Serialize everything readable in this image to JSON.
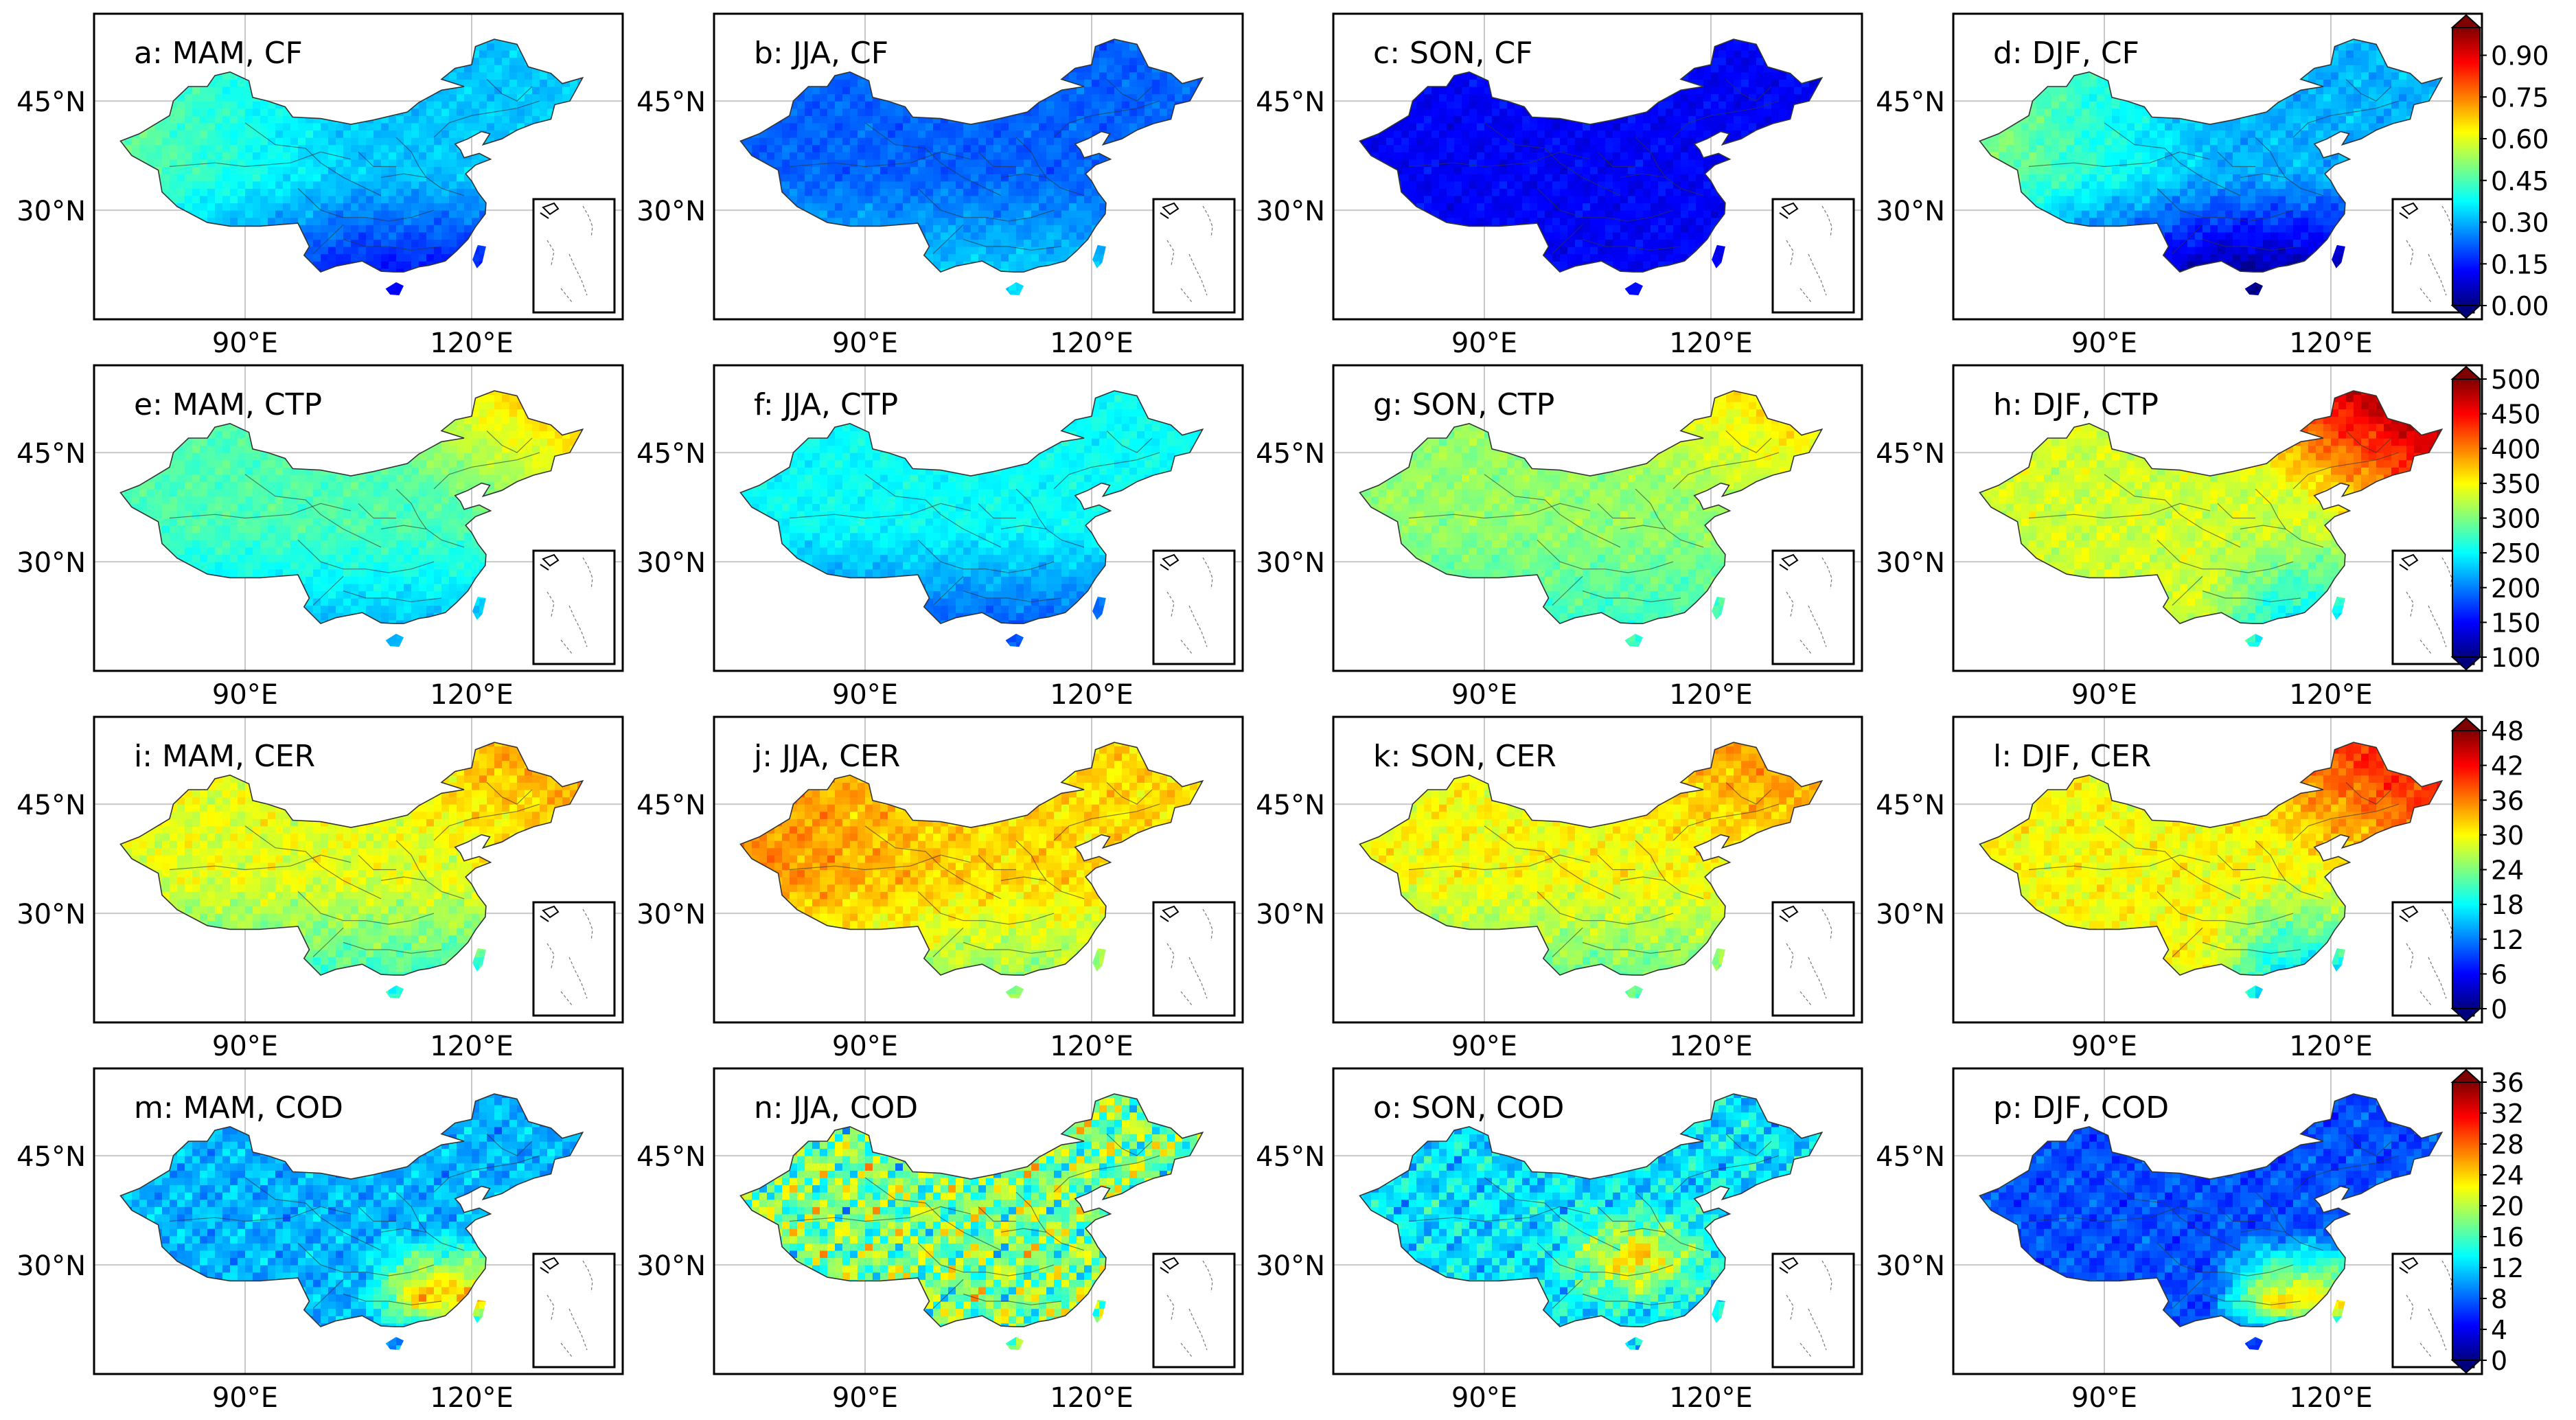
{
  "figure": {
    "description_rows": 4,
    "description_cols": 4
  },
  "chart_data": {
    "type": "map-grid",
    "axes": {
      "lat_ticks": [
        "45°N",
        "30°N"
      ],
      "lon_ticks": [
        "90°E",
        "120°E"
      ]
    },
    "seasons": [
      "MAM",
      "JJA",
      "SON",
      "DJF"
    ],
    "rows": [
      {
        "variable": "CF",
        "panels": [
          {
            "label": "a: MAM, CF",
            "pattern": "cf_mam"
          },
          {
            "label": "b: JJA, CF",
            "pattern": "cf_jja"
          },
          {
            "label": "c: SON, CF",
            "pattern": "cf_son"
          },
          {
            "label": "d: DJF, CF",
            "pattern": "cf_djf"
          }
        ],
        "colorbar": {
          "min": 0.0,
          "max": 1.0,
          "ticks": [
            "0.00",
            "0.15",
            "0.30",
            "0.45",
            "0.60",
            "0.75",
            "0.90"
          ],
          "tick_values": [
            0,
            0.15,
            0.3,
            0.45,
            0.6,
            0.75,
            0.9
          ]
        }
      },
      {
        "variable": "CTP",
        "panels": [
          {
            "label": "e: MAM, CTP",
            "pattern": "ctp_mam"
          },
          {
            "label": "f: JJA, CTP",
            "pattern": "ctp_jja"
          },
          {
            "label": "g: SON, CTP",
            "pattern": "ctp_son"
          },
          {
            "label": "h: DJF, CTP",
            "pattern": "ctp_djf"
          }
        ],
        "colorbar": {
          "min": 100,
          "max": 500,
          "ticks": [
            "100",
            "150",
            "200",
            "250",
            "300",
            "350",
            "400",
            "450",
            "500"
          ],
          "tick_values": [
            100,
            150,
            200,
            250,
            300,
            350,
            400,
            450,
            500
          ]
        }
      },
      {
        "variable": "CER",
        "panels": [
          {
            "label": "i: MAM, CER",
            "pattern": "cer_mam"
          },
          {
            "label": "j: JJA, CER",
            "pattern": "cer_jja"
          },
          {
            "label": "k: SON, CER",
            "pattern": "cer_son"
          },
          {
            "label": "l: DJF, CER",
            "pattern": "cer_djf"
          }
        ],
        "colorbar": {
          "min": 0,
          "max": 48,
          "ticks": [
            "0",
            "6",
            "12",
            "18",
            "24",
            "30",
            "36",
            "42",
            "48"
          ],
          "tick_values": [
            0,
            6,
            12,
            18,
            24,
            30,
            36,
            42,
            48
          ]
        }
      },
      {
        "variable": "COD",
        "panels": [
          {
            "label": "m: MAM, COD",
            "pattern": "cod_mam"
          },
          {
            "label": "n: JJA, COD",
            "pattern": "cod_jja"
          },
          {
            "label": "o: SON, COD",
            "pattern": "cod_son"
          },
          {
            "label": "p: DJF, COD",
            "pattern": "cod_djf"
          }
        ],
        "colorbar": {
          "min": 0,
          "max": 36,
          "ticks": [
            "0",
            "4",
            "8",
            "12",
            "16",
            "20",
            "24",
            "28",
            "32",
            "36"
          ],
          "tick_values": [
            0,
            4,
            8,
            12,
            16,
            20,
            24,
            28,
            32,
            36
          ]
        }
      }
    ]
  },
  "colors": {
    "jet": [
      "#00007f",
      "#0000ff",
      "#007fff",
      "#00ffff",
      "#7fff7f",
      "#ffff00",
      "#ff7f00",
      "#ff0000",
      "#7f0000"
    ],
    "frame": "#000000",
    "grid": "#c8c8c8",
    "border": "#333333"
  }
}
